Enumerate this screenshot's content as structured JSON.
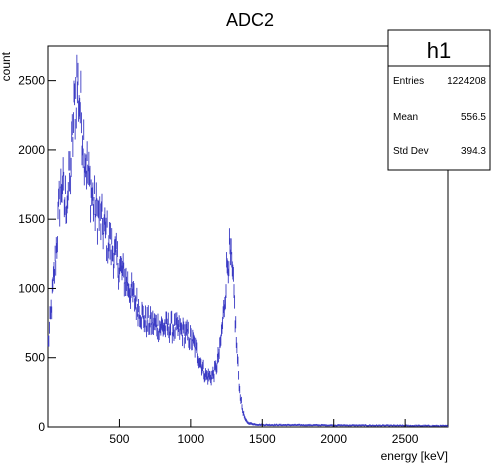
{
  "chart_data": {
    "type": "histogram",
    "title": "ADC2",
    "xlabel": "energy [keV]",
    "ylabel": "count",
    "xlim": [
      0,
      2800
    ],
    "ylim": [
      0,
      2750
    ],
    "x_ticks": [
      500,
      1000,
      1500,
      2000,
      2500
    ],
    "y_ticks": [
      0,
      500,
      1000,
      1500,
      2000,
      2500
    ],
    "grid": false,
    "series_color": "#3b3bc4",
    "stats_box": {
      "name": "h1",
      "rows": [
        {
          "label": "Entries",
          "value": "1224208"
        },
        {
          "label": "Mean",
          "value": "556.5"
        },
        {
          "label": "Std Dev",
          "value": "394.3"
        }
      ]
    },
    "envelope": [
      [
        0,
        600
      ],
      [
        25,
        900
      ],
      [
        50,
        1200
      ],
      [
        80,
        1650
      ],
      [
        100,
        1800
      ],
      [
        110,
        1600
      ],
      [
        140,
        1700
      ],
      [
        160,
        1900
      ],
      [
        180,
        2250
      ],
      [
        200,
        2500
      ],
      [
        220,
        2350
      ],
      [
        250,
        2050
      ],
      [
        280,
        1800
      ],
      [
        320,
        1600
      ],
      [
        380,
        1450
      ],
      [
        440,
        1300
      ],
      [
        500,
        1150
      ],
      [
        560,
        1020
      ],
      [
        620,
        880
      ],
      [
        680,
        760
      ],
      [
        740,
        740
      ],
      [
        800,
        720
      ],
      [
        860,
        720
      ],
      [
        920,
        700
      ],
      [
        980,
        660
      ],
      [
        1020,
        600
      ],
      [
        1060,
        480
      ],
      [
        1100,
        370
      ],
      [
        1140,
        360
      ],
      [
        1170,
        410
      ],
      [
        1200,
        550
      ],
      [
        1230,
        850
      ],
      [
        1250,
        1150
      ],
      [
        1265,
        1260
      ],
      [
        1280,
        1180
      ],
      [
        1300,
        950
      ],
      [
        1320,
        550
      ],
      [
        1340,
        260
      ],
      [
        1360,
        120
      ],
      [
        1380,
        50
      ],
      [
        1400,
        25
      ],
      [
        1450,
        15
      ],
      [
        1500,
        12
      ],
      [
        2800,
        5
      ]
    ]
  }
}
